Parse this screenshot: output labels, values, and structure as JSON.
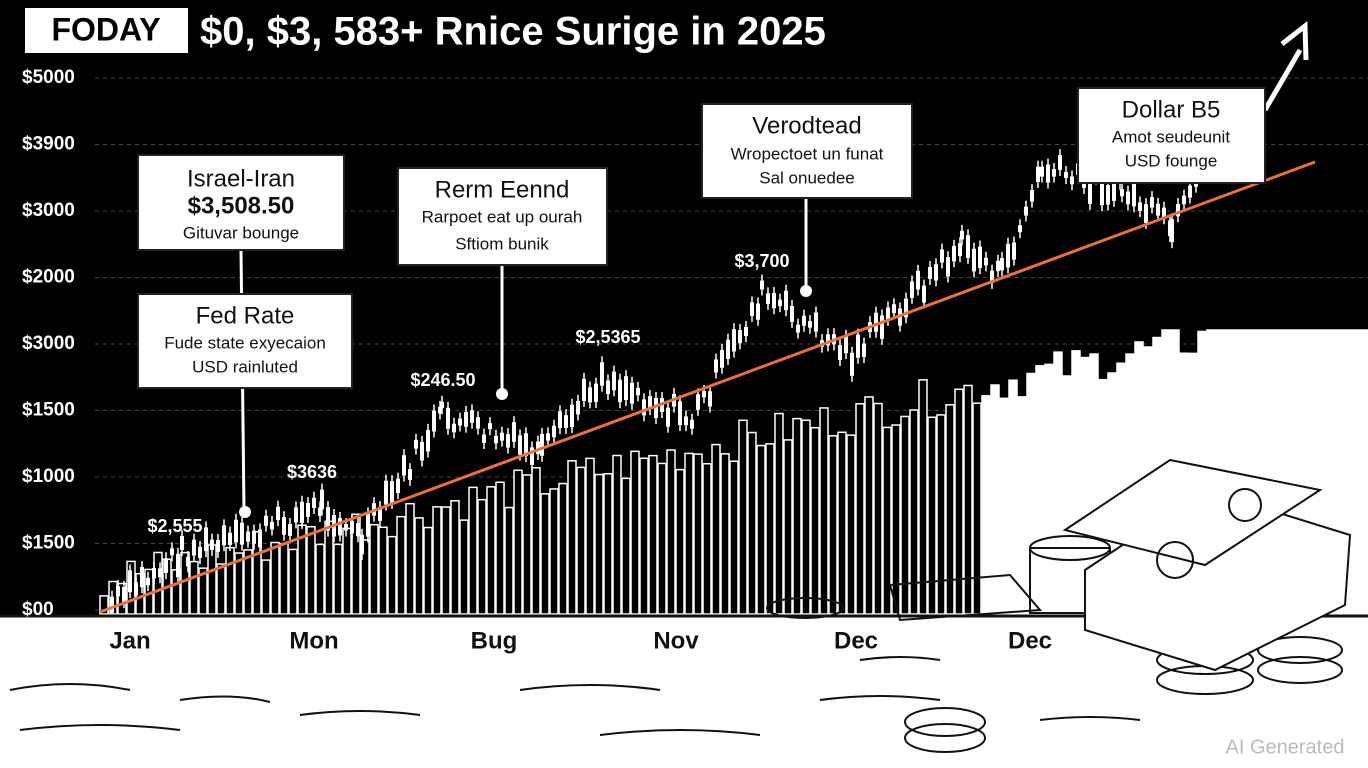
{
  "header": {
    "badge": "FODAY",
    "title": "$0, $3, 583+ Rnice Surige in 2025"
  },
  "y_axis_labels": [
    "$5000",
    "$3900",
    "$3000",
    "$2000",
    "$3000",
    "$1500",
    "$1000",
    "$1500",
    "$00"
  ],
  "x_axis_labels": [
    "Jan",
    "Mon",
    "Bug",
    "Nov",
    "Dec",
    "Dec"
  ],
  "callouts": [
    {
      "title": "Israel-Iran",
      "value": "$3,508.50",
      "note": "Gituvar bounge"
    },
    {
      "title": "Fed Rate",
      "lines": [
        "Fude state exyecaion",
        "USD rainluted"
      ]
    },
    {
      "title": "Rerm Eennd",
      "lines": [
        "Rarpoet eat up ourah",
        "Sftiom bunik"
      ]
    },
    {
      "title": "Verodtead",
      "lines": [
        "Wropectoet un funat",
        "Sal onuedee"
      ]
    },
    {
      "title": "Dollar B5",
      "lines": [
        "Amot seudeunit",
        "USD founge"
      ]
    }
  ],
  "price_labels": [
    "$2,555",
    "$3636",
    "$246.50",
    "$2,5365",
    "$3,700"
  ],
  "watermark": "AI Generated"
}
